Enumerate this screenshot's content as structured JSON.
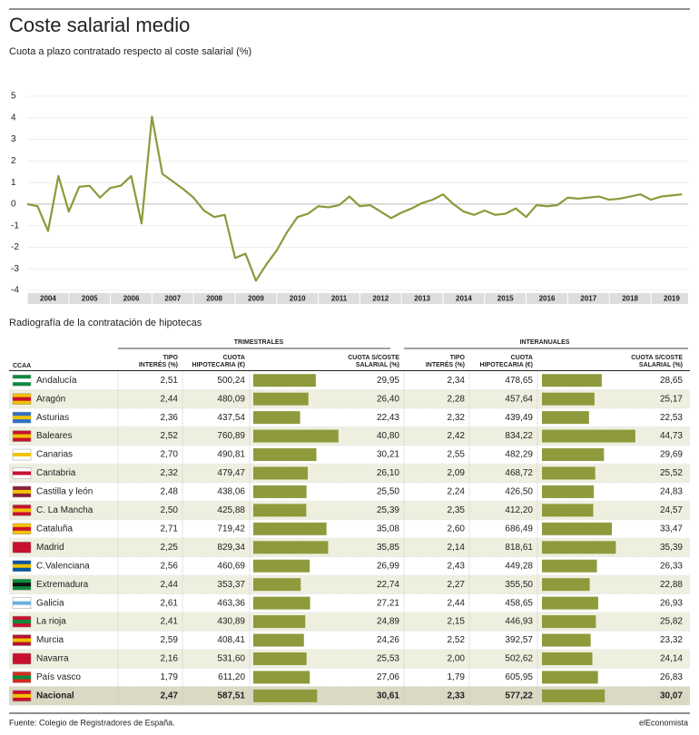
{
  "chart_data": {
    "type": "line",
    "title": "Coste salarial medio",
    "subtitle": "Cuota a plazo contratado respecto al coste salarial (%)",
    "color": "#8a9a3a",
    "years": [
      2004,
      2005,
      2006,
      2007,
      2008,
      2009,
      2010,
      2011,
      2012,
      2013,
      2014,
      2015,
      2016,
      2017,
      2018,
      2019
    ],
    "values": [
      0.0,
      -0.1,
      -1.25,
      1.3,
      -0.35,
      0.8,
      0.85,
      0.3,
      0.75,
      0.85,
      1.3,
      -0.9,
      4.05,
      1.4,
      1.05,
      0.7,
      0.3,
      -0.3,
      -0.6,
      -0.5,
      -2.5,
      -2.3,
      -3.55,
      -2.8,
      -2.15,
      -1.3,
      -0.6,
      -0.45,
      -0.1,
      -0.15,
      -0.05,
      0.35,
      -0.1,
      -0.05,
      -0.35,
      -0.65,
      -0.4,
      -0.2,
      0.05,
      0.2,
      0.45,
      0.0,
      -0.35,
      -0.5,
      -0.3,
      -0.5,
      -0.45,
      -0.2,
      -0.6,
      -0.05,
      -0.1,
      -0.05,
      0.3,
      0.25,
      0.3,
      0.35,
      0.2,
      0.25,
      0.35,
      0.45,
      0.2,
      0.35,
      0.4,
      0.45
    ],
    "ylim": [
      -4,
      5
    ],
    "yticks": [
      -4,
      -3,
      -2,
      -1,
      0,
      1,
      2,
      3,
      4,
      5
    ],
    "grid": true
  },
  "table": {
    "title": "Radiografía de la contratación de hipotecas",
    "groups": [
      "TRIMESTRALES",
      "INTERANUALES"
    ],
    "first_header": "CCAA",
    "headers": [
      [
        "TIPO",
        "INTERÉS (%)"
      ],
      [
        "CUOTA",
        "HIPOTECARIA (€)"
      ],
      [
        "CUOTA S/COSTE",
        "SALARIAL (%)"
      ]
    ],
    "bar_color": "#8f9a3c",
    "rows": [
      [
        "Andalucía",
        "2,51",
        "500,24",
        "29,95",
        "2,34",
        "478,65",
        "28,65"
      ],
      [
        "Aragón",
        "2,44",
        "480,09",
        "26,40",
        "2,28",
        "457,64",
        "25,17"
      ],
      [
        "Asturias",
        "2,36",
        "437,54",
        "22,43",
        "2,32",
        "439,49",
        "22,53"
      ],
      [
        "Baleares",
        "2,52",
        "760,89",
        "40,80",
        "2,42",
        "834,22",
        "44,73"
      ],
      [
        "Canarias",
        "2,70",
        "490,81",
        "30,21",
        "2,55",
        "482,29",
        "29,69"
      ],
      [
        "Cantabria",
        "2,32",
        "479,47",
        "26,10",
        "2,09",
        "468,72",
        "25,52"
      ],
      [
        "Castilla y león",
        "2,48",
        "438,06",
        "25,50",
        "2,24",
        "426,50",
        "24,83"
      ],
      [
        "C. La Mancha",
        "2,50",
        "425,88",
        "25,39",
        "2,35",
        "412,20",
        "24,57"
      ],
      [
        "Cataluña",
        "2,71",
        "719,42",
        "35,08",
        "2,60",
        "686,49",
        "33,47"
      ],
      [
        "Madrid",
        "2,25",
        "829,34",
        "35,85",
        "2,14",
        "818,61",
        "35,39"
      ],
      [
        "C.Valenciana",
        "2,56",
        "460,69",
        "26,99",
        "2,43",
        "449,28",
        "26,33"
      ],
      [
        "Extremadura",
        "2,44",
        "353,37",
        "22,74",
        "2,27",
        "355,50",
        "22,88"
      ],
      [
        "Galicia",
        "2,61",
        "463,36",
        "27,21",
        "2,44",
        "458,65",
        "26,93"
      ],
      [
        "La rioja",
        "2,41",
        "430,89",
        "24,89",
        "2,15",
        "446,93",
        "25,82"
      ],
      [
        "Murcia",
        "2,59",
        "408,41",
        "24,26",
        "2,52",
        "392,57",
        "23,32"
      ],
      [
        "Navarra",
        "2,16",
        "531,60",
        "25,53",
        "2,00",
        "502,62",
        "24,14"
      ],
      [
        "País vasco",
        "1,79",
        "611,20",
        "27,06",
        "1,79",
        "605,95",
        "26,83"
      ],
      [
        "Nacional",
        "2,47",
        "587,51",
        "30,61",
        "2,33",
        "577,22",
        "30,07"
      ]
    ]
  },
  "footer": {
    "source": "Fuente: Colegio de Registradores de España.",
    "brand": "elEconomista"
  }
}
